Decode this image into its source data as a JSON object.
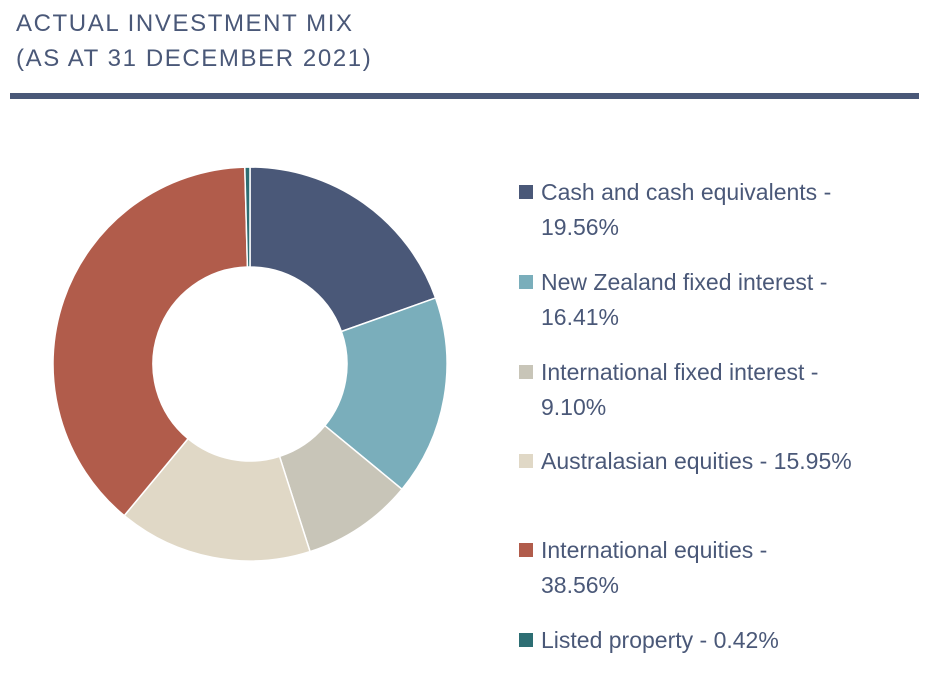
{
  "title": {
    "line1": "ACTUAL INVESTMENT MIX",
    "line2": "(AS AT 31 DECEMBER 2021)"
  },
  "colors": {
    "title": "#4a5878",
    "rule": "#4a5878"
  },
  "chart_data": {
    "type": "pie",
    "style": "donut",
    "legend_position": "right",
    "series": [
      {
        "name": "Cash and cash equivalents",
        "value": 19.56,
        "label": "Cash and cash equivalents -",
        "pct_label": "19.56%",
        "color": "#4a5878"
      },
      {
        "name": "New Zealand fixed interest",
        "value": 16.41,
        "label": "New Zealand fixed interest -",
        "pct_label": "16.41%",
        "color": "#7aaebb"
      },
      {
        "name": "International fixed interest",
        "value": 9.1,
        "label": "International fixed interest -",
        "pct_label": "9.10%",
        "color": "#c8c5b8"
      },
      {
        "name": "Australasian equities",
        "value": 15.95,
        "label": "Australasian equities - 15.95%",
        "pct_label": "",
        "color": "#e0d8c6"
      },
      {
        "name": "International equities",
        "value": 38.56,
        "label": "International equities -",
        "pct_label": "38.56%",
        "color": "#b15c4b"
      },
      {
        "name": "Listed property",
        "value": 0.42,
        "label": "Listed property - 0.42%",
        "pct_label": "",
        "color": "#2d6e73"
      }
    ]
  }
}
